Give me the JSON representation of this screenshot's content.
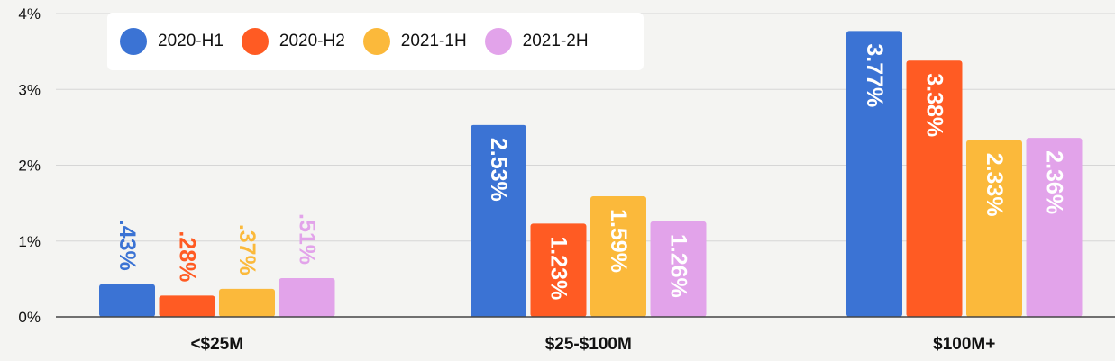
{
  "chart_data": {
    "type": "bar",
    "categories": [
      "<$25M",
      "$25-$100M",
      "$100M+"
    ],
    "series": [
      {
        "name": "2020-H1",
        "color": "#3b73d4",
        "values": [
          0.43,
          2.53,
          3.77
        ],
        "labels": [
          ".43%",
          "2.53%",
          "3.77%"
        ]
      },
      {
        "name": "2020-H2",
        "color": "#ff5b23",
        "values": [
          0.28,
          1.23,
          3.38
        ],
        "labels": [
          ".28%",
          "1.23%",
          "3.38%"
        ]
      },
      {
        "name": "2021-1H",
        "color": "#fbb93b",
        "values": [
          0.37,
          1.59,
          2.33
        ],
        "labels": [
          ".37%",
          "1.59%",
          "2.33%"
        ]
      },
      {
        "name": "2021-2H",
        "color": "#e2a3ea",
        "values": [
          0.51,
          1.26,
          2.36
        ],
        "labels": [
          ".51%",
          "1.26%",
          "2.36%"
        ]
      }
    ],
    "y_ticks": [
      "0%",
      "1%",
      "2%",
      "3%",
      "4%"
    ],
    "ylim": [
      0,
      4
    ],
    "grid": true,
    "legend_position": "top-left"
  },
  "legend": {
    "items": [
      {
        "label": "2020-H1",
        "color": "#3b73d4"
      },
      {
        "label": "2020-H2",
        "color": "#ff5b23"
      },
      {
        "label": "2021-1H",
        "color": "#fbb93b"
      },
      {
        "label": "2021-2H",
        "color": "#e2a3ea"
      }
    ]
  }
}
